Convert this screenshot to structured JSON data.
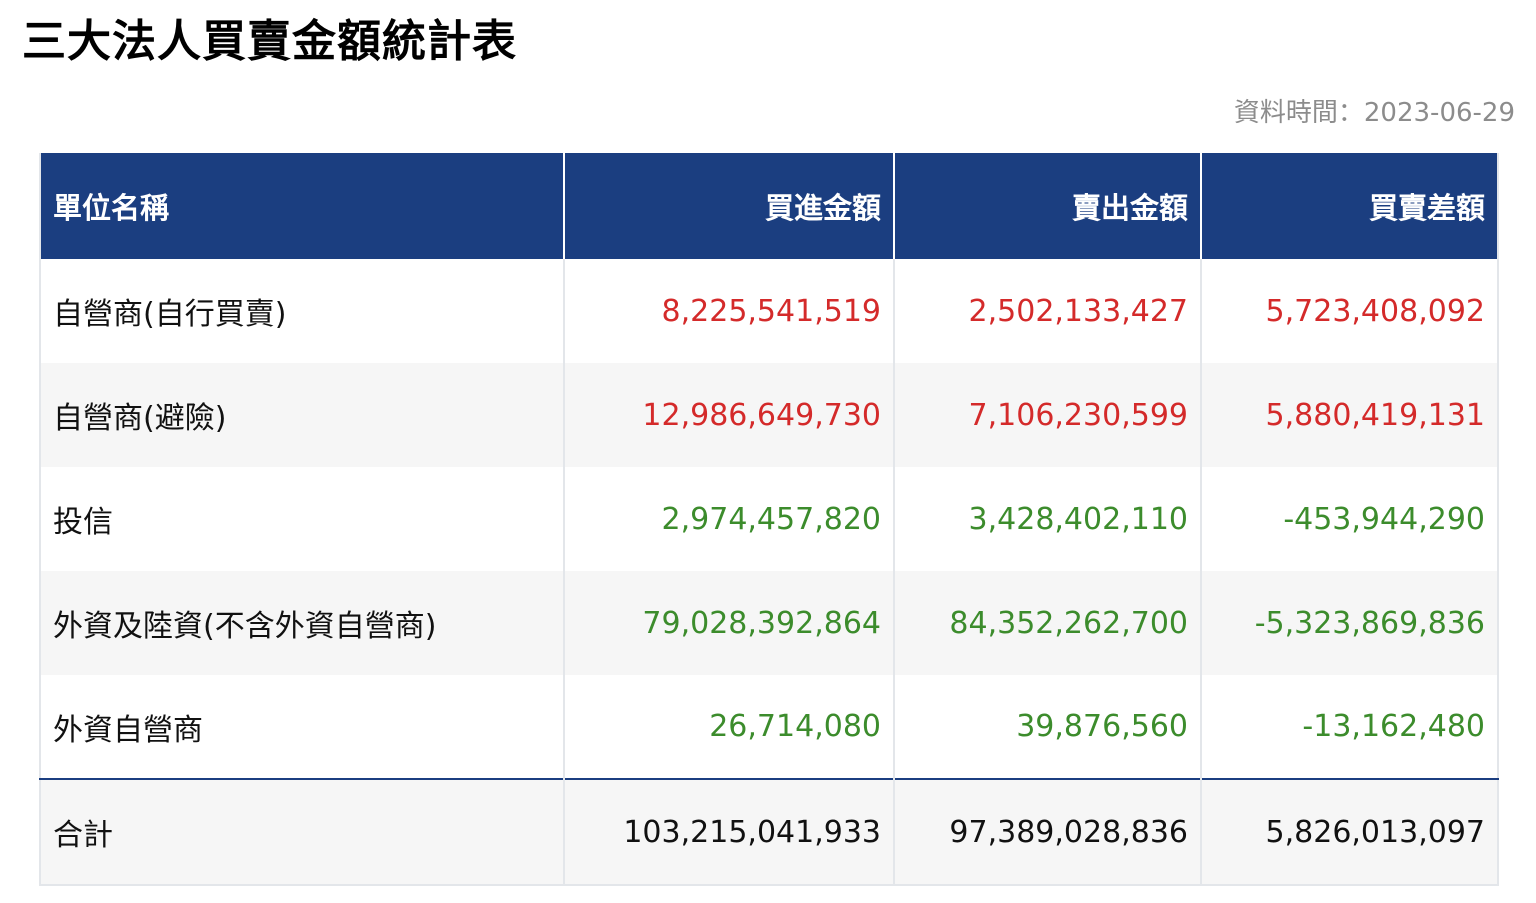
{
  "title": "三大法人買賣金額統計表",
  "data_time": "資料時間：2023-06-29",
  "colors": {
    "header_bg": "#1b3e80",
    "positive": "#d42a2a",
    "negative": "#3c8c2c"
  },
  "table": {
    "headers": [
      "單位名稱",
      "買進金額",
      "賣出金額",
      "買賣差額"
    ],
    "rows": [
      {
        "name": "自營商(自行買賣)",
        "buy": "8,225,541,519",
        "sell": "2,502,133,427",
        "diff": "5,723,408,092",
        "tone": "red"
      },
      {
        "name": "自營商(避險)",
        "buy": "12,986,649,730",
        "sell": "7,106,230,599",
        "diff": "5,880,419,131",
        "tone": "red"
      },
      {
        "name": "投信",
        "buy": "2,974,457,820",
        "sell": "3,428,402,110",
        "diff": "-453,944,290",
        "tone": "green"
      },
      {
        "name": "外資及陸資(不含外資自營商)",
        "buy": "79,028,392,864",
        "sell": "84,352,262,700",
        "diff": "-5,323,869,836",
        "tone": "green"
      },
      {
        "name": "外資自營商",
        "buy": "26,714,080",
        "sell": "39,876,560",
        "diff": "-13,162,480",
        "tone": "green"
      }
    ],
    "total": {
      "name": "合計",
      "buy": "103,215,041,933",
      "sell": "97,389,028,836",
      "diff": "5,826,013,097"
    }
  }
}
